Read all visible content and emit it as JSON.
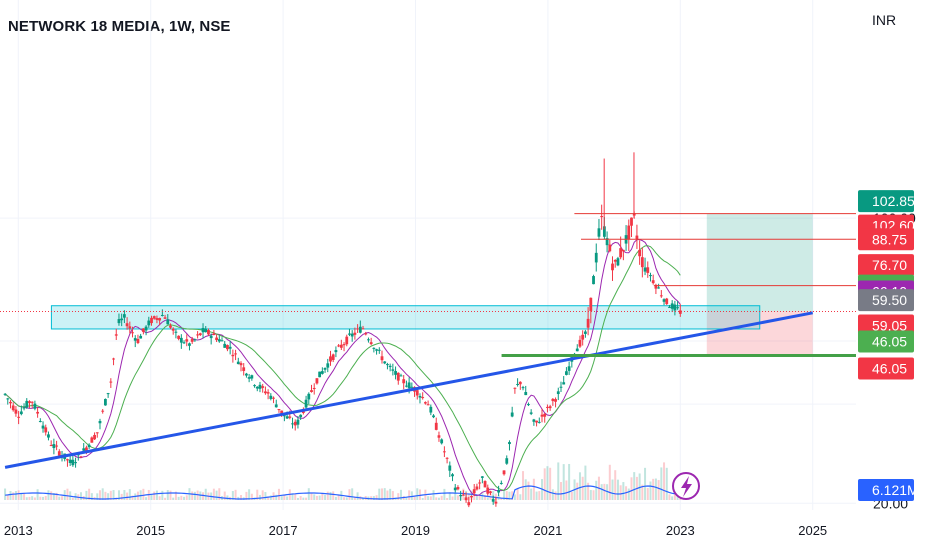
{
  "header": {
    "title": "NETWORK 18 MEDIA, 1W, NSE",
    "currency": "INR"
  },
  "indicator_icon": "lightning-bolt-icon",
  "chart_data": {
    "type": "candlestick",
    "title": "NETWORK 18 MEDIA, 1W, NSE",
    "x_ticks": [
      "2013",
      "2015",
      "2017",
      "2019",
      "2021",
      "2023",
      "2025"
    ],
    "y_ticks": [
      {
        "value": 20.0,
        "label": "20.00"
      },
      {
        "value": 100.0,
        "label": "100.00"
      }
    ],
    "y_scale": "log",
    "ylim": [
      14,
      150
    ],
    "xlim": [
      2012.8,
      2026.5
    ],
    "price_series": [
      [
        2012.8,
        37
      ],
      [
        2013.0,
        33
      ],
      [
        2013.2,
        36
      ],
      [
        2013.5,
        28
      ],
      [
        2013.8,
        25
      ],
      [
        2014.0,
        27
      ],
      [
        2014.2,
        30
      ],
      [
        2014.4,
        40
      ],
      [
        2014.5,
        55
      ],
      [
        2014.6,
        57
      ],
      [
        2014.8,
        50
      ],
      [
        2015.0,
        56
      ],
      [
        2015.2,
        58
      ],
      [
        2015.4,
        51
      ],
      [
        2015.6,
        49
      ],
      [
        2015.8,
        53
      ],
      [
        2016.0,
        51
      ],
      [
        2016.2,
        48
      ],
      [
        2016.4,
        43
      ],
      [
        2016.6,
        39
      ],
      [
        2016.8,
        37
      ],
      [
        2017.0,
        33
      ],
      [
        2017.2,
        31
      ],
      [
        2017.5,
        40
      ],
      [
        2017.8,
        47
      ],
      [
        2018.0,
        51
      ],
      [
        2018.2,
        54
      ],
      [
        2018.4,
        48
      ],
      [
        2018.6,
        43
      ],
      [
        2018.8,
        40
      ],
      [
        2019.0,
        38
      ],
      [
        2019.2,
        35
      ],
      [
        2019.4,
        28
      ],
      [
        2019.6,
        22
      ],
      [
        2019.8,
        20
      ],
      [
        2020.0,
        23
      ],
      [
        2020.2,
        20
      ],
      [
        2020.4,
        26
      ],
      [
        2020.5,
        38
      ],
      [
        2020.6,
        40
      ],
      [
        2020.8,
        31
      ],
      [
        2021.0,
        34
      ],
      [
        2021.2,
        38
      ],
      [
        2021.4,
        47
      ],
      [
        2021.6,
        53
      ],
      [
        2021.7,
        73
      ],
      [
        2021.8,
        100
      ],
      [
        2021.9,
        88
      ],
      [
        2022.0,
        75
      ],
      [
        2022.2,
        90
      ],
      [
        2022.3,
        100
      ],
      [
        2022.4,
        80
      ],
      [
        2022.6,
        70
      ],
      [
        2022.8,
        62
      ],
      [
        2023.0,
        59
      ]
    ],
    "series": [
      {
        "name": "",
        "color": "#089981"
      },
      {
        "name": "",
        "color": "#f23645"
      }
    ],
    "shapes": {
      "support_zone": {
        "x_start": 2013.5,
        "x_end": 2024.2,
        "y_low": 53.5,
        "y_high": 61.0
      },
      "trendline": {
        "x_start": 2012.8,
        "y_start": 24.5,
        "x_end": 2025.0,
        "y_end": 58.6
      },
      "target_zone": {
        "x_start": 2023.4,
        "x_end": 2025.0,
        "y_low": 59.0,
        "y_high": 102.6
      },
      "stop_zone": {
        "x_start": 2023.4,
        "x_end": 2025.0,
        "y_low": 46.05,
        "y_high": 59.0
      },
      "stop_line": {
        "x_start": 2020.3,
        "x_end": 2026.5,
        "y": 46.05
      },
      "red_lines": [
        {
          "x_start": 2021.4,
          "x_end": 2026.5,
          "y": 102.6
        },
        {
          "x_start": 2021.5,
          "x_end": 2026.5,
          "y": 88.75
        },
        {
          "x_start": 2022.6,
          "x_end": 2026.5,
          "y": 68.35
        }
      ],
      "current_price_line": {
        "y": 59.05
      }
    },
    "price_tags": [
      {
        "label": "102.85",
        "value": 102.85,
        "color": "#089981",
        "offset": -12
      },
      {
        "label": "102.60",
        "value": 102.6,
        "color": "#f23645",
        "offset": 12
      },
      {
        "label": "88.75",
        "value": 88.75,
        "color": "#f23645",
        "offset": 0
      },
      {
        "label": "76.70",
        "value": 76.7,
        "color": "#f23645",
        "offset": 0
      },
      {
        "label": "68.35",
        "value": 68.35,
        "color": "#4caf50",
        "offset": 0
      },
      {
        "label": "66.10",
        "value": 66.1,
        "color": "#9c27b0",
        "offset": 0
      },
      {
        "label": "59.50",
        "value": 59.5,
        "color": "#787b86",
        "offset": -10
      },
      {
        "label": "59.05",
        "value": 59.05,
        "color": "#f23645",
        "offset": 14
      },
      {
        "label": "46.05",
        "value": 46.05,
        "color": "#4caf50",
        "offset": -14
      },
      {
        "label": "46.05",
        "value": 46.05,
        "color": "#f23645",
        "offset": 13
      },
      {
        "label": "6.121M",
        "value": null,
        "color": "#2962ff",
        "offset": 0
      }
    ]
  }
}
